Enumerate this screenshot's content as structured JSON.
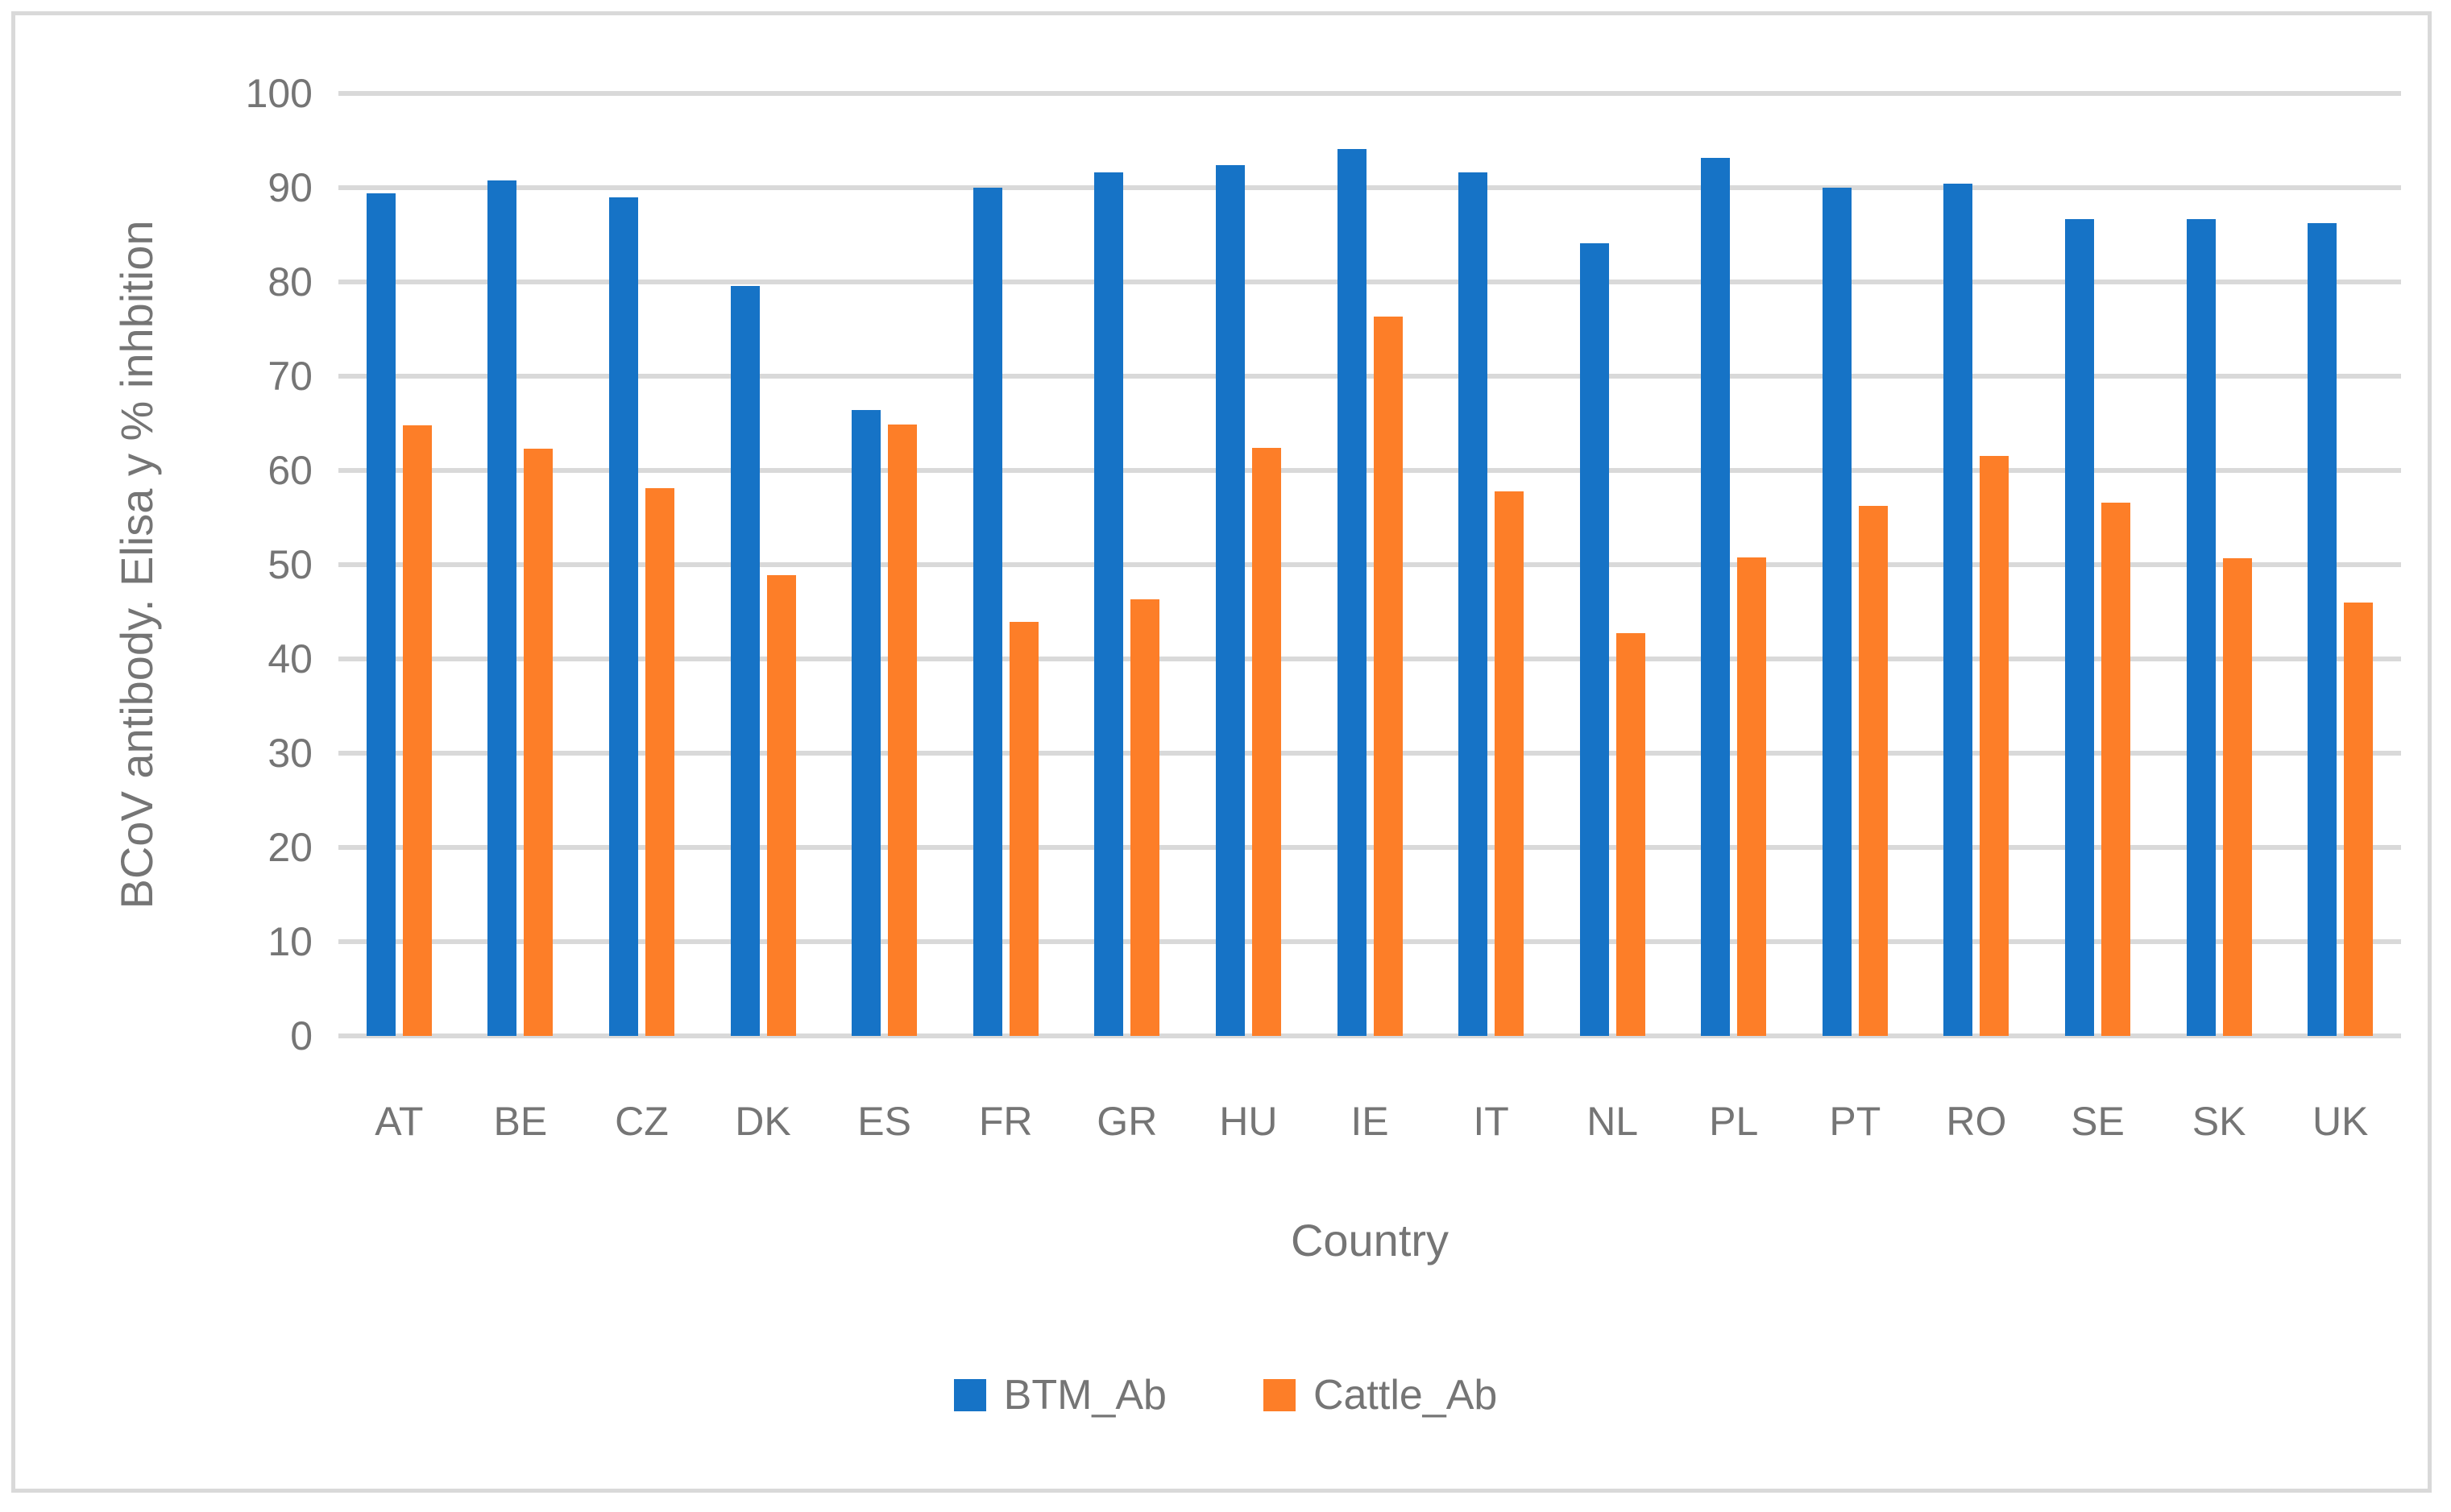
{
  "chart_data": {
    "type": "bar",
    "title": "",
    "xlabel": "Country",
    "ylabel": "BCoV antibody. Elisa y % inhbition",
    "categories": [
      "AT",
      "BE",
      "CZ",
      "DK",
      "ES",
      "FR",
      "GR",
      "HU",
      "IE",
      "IT",
      "NL",
      "PL",
      "PT",
      "RO",
      "SE",
      "SK",
      "UK"
    ],
    "series": [
      {
        "name": "BTM_Ab",
        "color": "#1673C6",
        "values": [
          89.4,
          90.8,
          89.0,
          79.6,
          66.4,
          90.0,
          91.6,
          92.4,
          94.1,
          91.6,
          84.1,
          93.2,
          90.0,
          90.4,
          86.7,
          86.7,
          86.2
        ]
      },
      {
        "name": "Cattle_Ab",
        "color": "#FD7E28",
        "values": [
          64.8,
          62.3,
          58.1,
          48.9,
          64.9,
          43.9,
          46.3,
          62.4,
          76.3,
          57.8,
          42.7,
          50.8,
          56.2,
          61.5,
          56.6,
          50.7,
          46.0
        ]
      }
    ],
    "ylim": [
      0,
      100
    ],
    "yticks": [
      0,
      10,
      20,
      30,
      40,
      50,
      60,
      70,
      80,
      90,
      100
    ],
    "grid": "horizontal",
    "legend_position": "bottom"
  },
  "style": {
    "grid_color": "#D9D9D9",
    "frame_color": "#D9D9D9",
    "text_color": "#757575",
    "background": "#FFFFFF"
  }
}
